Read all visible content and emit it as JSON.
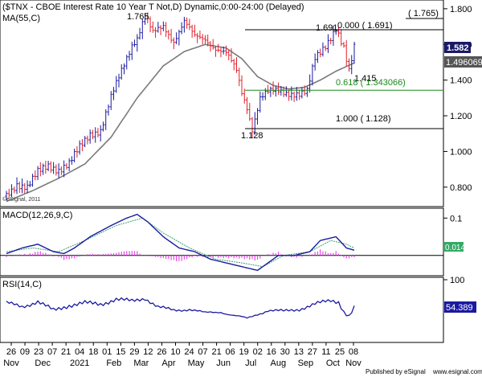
{
  "chart_data": {
    "type": "line",
    "title": "($TNX - CBOE Interest Rate 10 Year T Not,D) Dynamic,0:00-24:00 (Delayed)",
    "moving_average_label": "MA(55,C)",
    "watermark": "©eSignal, 2011",
    "price_axis": {
      "min": 0.7,
      "max": 1.84,
      "ticks": [
        "1.800",
        "1.600",
        "1.400",
        "1.200",
        "1.000",
        "0.800"
      ]
    },
    "last_price": "1.582",
    "ma_value": "1.496069",
    "fib_levels": [
      {
        "label": "0.000 ( 1.691)",
        "value": 1.691
      },
      {
        "label": "0.618 ( 1.343066)",
        "value": 1.343066
      },
      {
        "label": "1.000 ( 1.128)",
        "value": 1.128
      }
    ],
    "top_bracket_label": "( 1.765)",
    "price_annotations": [
      "1.765",
      "1.691",
      "1.415",
      "1.128"
    ],
    "price_anchors": [
      {
        "t": 0,
        "v": 0.75
      },
      {
        "t": 4,
        "v": 0.82
      },
      {
        "t": 8,
        "v": 0.8
      },
      {
        "t": 12,
        "v": 0.88
      },
      {
        "t": 16,
        "v": 0.92
      },
      {
        "t": 20,
        "v": 0.9
      },
      {
        "t": 24,
        "v": 0.93
      },
      {
        "t": 28,
        "v": 1.02
      },
      {
        "t": 32,
        "v": 1.1
      },
      {
        "t": 36,
        "v": 1.12
      },
      {
        "t": 40,
        "v": 1.3
      },
      {
        "t": 44,
        "v": 1.45
      },
      {
        "t": 48,
        "v": 1.6
      },
      {
        "t": 50,
        "v": 1.64
      },
      {
        "t": 53,
        "v": 1.765
      },
      {
        "t": 56,
        "v": 1.66
      },
      {
        "t": 60,
        "v": 1.7
      },
      {
        "t": 64,
        "v": 1.62
      },
      {
        "t": 68,
        "v": 1.73
      },
      {
        "t": 72,
        "v": 1.64
      },
      {
        "t": 76,
        "v": 1.63
      },
      {
        "t": 80,
        "v": 1.58
      },
      {
        "t": 84,
        "v": 1.55
      },
      {
        "t": 88,
        "v": 1.45
      },
      {
        "t": 90,
        "v": 1.33
      },
      {
        "t": 92,
        "v": 1.25
      },
      {
        "t": 94,
        "v": 1.128
      },
      {
        "t": 97,
        "v": 1.3
      },
      {
        "t": 100,
        "v": 1.33
      },
      {
        "t": 104,
        "v": 1.34
      },
      {
        "t": 108,
        "v": 1.33
      },
      {
        "t": 112,
        "v": 1.32
      },
      {
        "t": 115,
        "v": 1.33
      },
      {
        "t": 118,
        "v": 1.52
      },
      {
        "t": 122,
        "v": 1.6
      },
      {
        "t": 126,
        "v": 1.691
      },
      {
        "t": 129,
        "v": 1.57
      },
      {
        "t": 131,
        "v": 1.44
      },
      {
        "t": 133,
        "v": 1.582
      }
    ],
    "ma_anchors": [
      {
        "t": 0,
        "v": 0.72
      },
      {
        "t": 10,
        "v": 0.78
      },
      {
        "t": 20,
        "v": 0.85
      },
      {
        "t": 30,
        "v": 0.93
      },
      {
        "t": 40,
        "v": 1.08
      },
      {
        "t": 50,
        "v": 1.3
      },
      {
        "t": 60,
        "v": 1.48
      },
      {
        "t": 68,
        "v": 1.56
      },
      {
        "t": 76,
        "v": 1.6
      },
      {
        "t": 84,
        "v": 1.58
      },
      {
        "t": 90,
        "v": 1.52
      },
      {
        "t": 96,
        "v": 1.42
      },
      {
        "t": 102,
        "v": 1.37
      },
      {
        "t": 108,
        "v": 1.35
      },
      {
        "t": 114,
        "v": 1.36
      },
      {
        "t": 120,
        "v": 1.4
      },
      {
        "t": 126,
        "v": 1.45
      },
      {
        "t": 133,
        "v": 1.496
      }
    ],
    "macd": {
      "label": "MACD(12,26,9,C)",
      "axis": {
        "min": -0.05,
        "max": 0.12,
        "ticks": [
          "0.1"
        ]
      },
      "value_label": "0.014",
      "macd_anchors": [
        {
          "t": 0,
          "v": 0.005
        },
        {
          "t": 6,
          "v": 0.02
        },
        {
          "t": 12,
          "v": 0.03
        },
        {
          "t": 18,
          "v": 0.01
        },
        {
          "t": 22,
          "v": 0.005
        },
        {
          "t": 26,
          "v": 0.02
        },
        {
          "t": 32,
          "v": 0.05
        },
        {
          "t": 40,
          "v": 0.08
        },
        {
          "t": 46,
          "v": 0.1
        },
        {
          "t": 50,
          "v": 0.11
        },
        {
          "t": 54,
          "v": 0.09
        },
        {
          "t": 60,
          "v": 0.05
        },
        {
          "t": 66,
          "v": 0.02
        },
        {
          "t": 72,
          "v": 0.01
        },
        {
          "t": 78,
          "v": -0.01
        },
        {
          "t": 84,
          "v": -0.02
        },
        {
          "t": 90,
          "v": -0.03
        },
        {
          "t": 96,
          "v": -0.04
        },
        {
          "t": 100,
          "v": -0.02
        },
        {
          "t": 104,
          "v": 0.0
        },
        {
          "t": 110,
          "v": 0.0
        },
        {
          "t": 116,
          "v": 0.01
        },
        {
          "t": 120,
          "v": 0.04
        },
        {
          "t": 126,
          "v": 0.05
        },
        {
          "t": 130,
          "v": 0.02
        },
        {
          "t": 133,
          "v": 0.014
        }
      ],
      "signal_anchors": [
        {
          "t": 0,
          "v": 0.01
        },
        {
          "t": 10,
          "v": 0.02
        },
        {
          "t": 20,
          "v": 0.01
        },
        {
          "t": 30,
          "v": 0.04
        },
        {
          "t": 42,
          "v": 0.08
        },
        {
          "t": 52,
          "v": 0.1
        },
        {
          "t": 60,
          "v": 0.06
        },
        {
          "t": 70,
          "v": 0.02
        },
        {
          "t": 80,
          "v": -0.01
        },
        {
          "t": 90,
          "v": -0.02
        },
        {
          "t": 98,
          "v": -0.03
        },
        {
          "t": 106,
          "v": 0.0
        },
        {
          "t": 116,
          "v": 0.01
        },
        {
          "t": 124,
          "v": 0.04
        },
        {
          "t": 130,
          "v": 0.03
        },
        {
          "t": 133,
          "v": 0.02
        }
      ]
    },
    "rsi": {
      "label": "RSI(14,C)",
      "axis": {
        "min": 0,
        "max": 100,
        "ticks": [
          "100"
        ]
      },
      "value_label": "54.389",
      "anchors": [
        {
          "t": 0,
          "v": 62
        },
        {
          "t": 6,
          "v": 56
        },
        {
          "t": 12,
          "v": 64
        },
        {
          "t": 18,
          "v": 50
        },
        {
          "t": 24,
          "v": 58
        },
        {
          "t": 30,
          "v": 62
        },
        {
          "t": 36,
          "v": 60
        },
        {
          "t": 42,
          "v": 68
        },
        {
          "t": 48,
          "v": 65
        },
        {
          "t": 53,
          "v": 70
        },
        {
          "t": 58,
          "v": 55
        },
        {
          "t": 64,
          "v": 50
        },
        {
          "t": 70,
          "v": 52
        },
        {
          "t": 76,
          "v": 45
        },
        {
          "t": 82,
          "v": 48
        },
        {
          "t": 88,
          "v": 40
        },
        {
          "t": 92,
          "v": 36
        },
        {
          "t": 96,
          "v": 44
        },
        {
          "t": 100,
          "v": 50
        },
        {
          "t": 106,
          "v": 48
        },
        {
          "t": 112,
          "v": 52
        },
        {
          "t": 118,
          "v": 60
        },
        {
          "t": 124,
          "v": 66
        },
        {
          "t": 127,
          "v": 64
        },
        {
          "t": 129,
          "v": 48
        },
        {
          "t": 131,
          "v": 40
        },
        {
          "t": 133,
          "v": 54
        }
      ]
    },
    "x_axis": {
      "day_ticks": [
        "26",
        "09",
        "23",
        "07",
        "21",
        "04",
        "18",
        "01",
        "15",
        "29",
        "12",
        "26",
        "10",
        "24",
        "07",
        "21",
        "06",
        "19",
        "02",
        "16",
        "30",
        "13",
        "27",
        "11",
        "25",
        "08"
      ],
      "month_labels": [
        {
          "label": "Nov",
          "index": 0
        },
        {
          "label": "Dec",
          "index": 2.3
        },
        {
          "label": "2021",
          "index": 5
        },
        {
          "label": "Feb",
          "index": 7.5
        },
        {
          "label": "Mar",
          "index": 9.5
        },
        {
          "label": "Apr",
          "index": 11.5
        },
        {
          "label": "May",
          "index": 13.5
        },
        {
          "label": "Jun",
          "index": 15.5
        },
        {
          "label": "Jul",
          "index": 17.5
        },
        {
          "label": "Aug",
          "index": 19.5
        },
        {
          "label": "Sep",
          "index": 21.5
        },
        {
          "label": "Oct",
          "index": 23.5
        },
        {
          "label": "Nov",
          "index": 25
        }
      ]
    },
    "footer": {
      "published_by": "Published by eSignal",
      "website": "www.esignal.com"
    },
    "colors": {
      "up_bar": "#1a1aa0",
      "down_bar": "#e0202a",
      "ma_line": "#7a7a7a",
      "fib_line": "#000000",
      "fib_618": "#1a8a1a",
      "macd_line": "#1a1aa0",
      "signal_line": "#3aa070",
      "histogram": "#e64ce6",
      "rsi_line": "#1a1aa0",
      "last_price_bg": "#1a1a66"
    }
  }
}
